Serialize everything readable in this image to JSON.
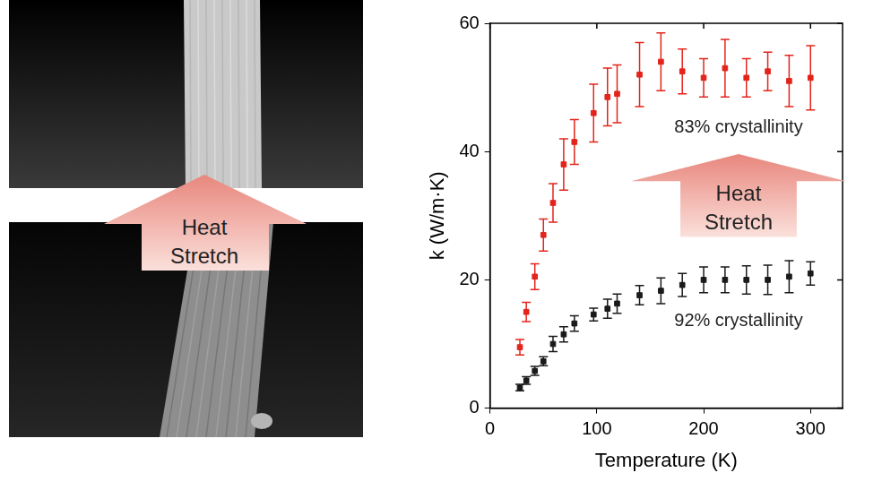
{
  "image_panel": {
    "arrow_label": "Heat Stretch"
  },
  "chart_data": {
    "type": "scatter",
    "x_label": "Temperature (K)",
    "y_label": "k (W/m·K)",
    "xlim": [
      0,
      330
    ],
    "xticks": [
      0,
      100,
      200,
      300
    ],
    "ylim": [
      0,
      60
    ],
    "yticks": [
      0,
      20,
      40,
      60
    ],
    "grid": false,
    "annotations": [
      "Heat Stretch"
    ],
    "x": [
      28,
      34,
      42,
      50,
      59,
      69,
      79,
      97,
      110,
      119,
      140,
      160,
      180,
      200,
      220,
      240,
      260,
      280,
      300
    ],
    "series": [
      {
        "name": "83% crystallinity",
        "color": "#e3241b",
        "marker": "square",
        "values": [
          9.5,
          15,
          20.5,
          27,
          32,
          38,
          41.5,
          46,
          48.5,
          49,
          52,
          54,
          52.5,
          51.5,
          53,
          51.5,
          52.5,
          51,
          51.5
        ],
        "errors": [
          1.2,
          1.5,
          2,
          2.5,
          3,
          4,
          3.5,
          4.5,
          4.5,
          4.5,
          5,
          4.5,
          3.5,
          3,
          4.5,
          3,
          3,
          4,
          5
        ]
      },
      {
        "name": "92% crystallinity",
        "color": "#1a1a1a",
        "marker": "square",
        "values": [
          3.2,
          4.3,
          5.8,
          7.3,
          10,
          11.5,
          13.2,
          14.6,
          15.5,
          16.3,
          17.6,
          18.3,
          19.2,
          20,
          20,
          20,
          20,
          20.5,
          21
        ],
        "errors": [
          0.5,
          0.6,
          0.7,
          0.7,
          1.2,
          1.2,
          1.2,
          1,
          1.5,
          1.5,
          1.5,
          2,
          1.8,
          2,
          2,
          2.2,
          2.3,
          2.5,
          1.8
        ]
      }
    ]
  }
}
